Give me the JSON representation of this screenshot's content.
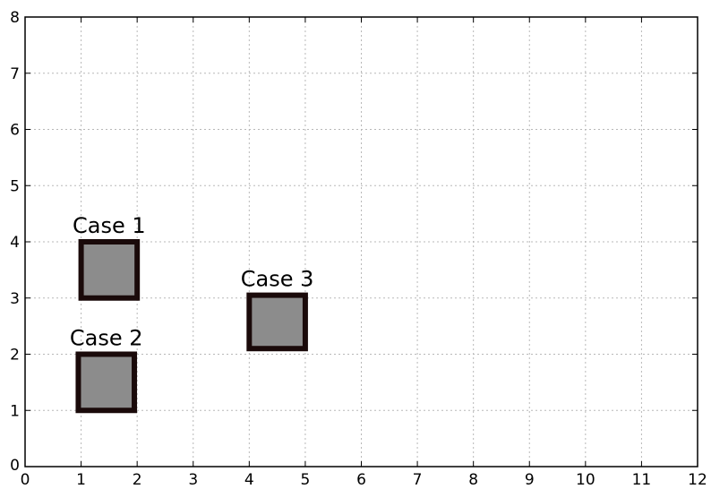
{
  "chart_data": {
    "type": "scatter",
    "title": "",
    "xlabel": "",
    "ylabel": "",
    "xlim": [
      0,
      12
    ],
    "ylim": [
      0,
      8
    ],
    "x_ticks": [
      "0",
      "1",
      "2",
      "3",
      "4",
      "5",
      "6",
      "7",
      "8",
      "9",
      "10",
      "11",
      "12"
    ],
    "y_ticks": [
      "0",
      "1",
      "2",
      "3",
      "4",
      "5",
      "6",
      "7",
      "8"
    ],
    "grid": true,
    "marker_fill": "#8c8c8c",
    "marker_edge": "#1a0a0a",
    "series": [
      {
        "label": "Case 1",
        "x0": 1.0,
        "x1": 2.0,
        "y0": 3.0,
        "y1": 4.0
      },
      {
        "label": "Case 2",
        "x0": 0.95,
        "x1": 1.95,
        "y0": 1.0,
        "y1": 2.0
      },
      {
        "label": "Case 3",
        "x0": 4.0,
        "x1": 5.0,
        "y0": 2.1,
        "y1": 3.05
      }
    ]
  }
}
